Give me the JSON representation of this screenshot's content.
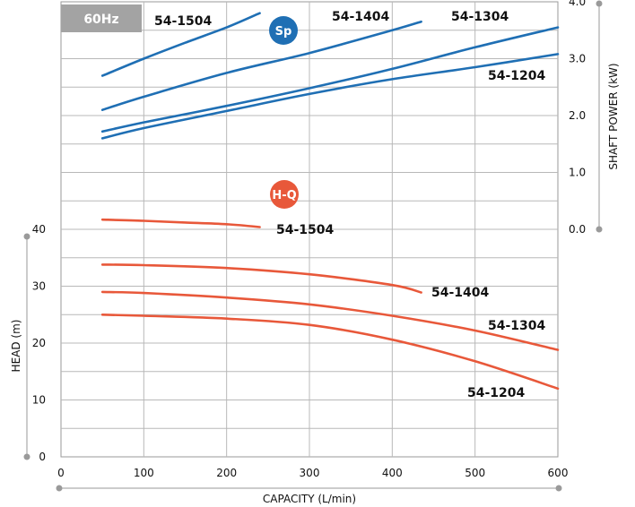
{
  "chart_data": {
    "type": "line",
    "frequency_tag": "60Hz",
    "x_axis": {
      "title": "CAPACITY (L/min)",
      "range": [
        0,
        600
      ],
      "ticks": [
        0,
        100,
        200,
        300,
        400,
        500,
        600
      ]
    },
    "head_axis": {
      "title": "HEAD (m)",
      "range": [
        0,
        40
      ],
      "ticks": [
        0,
        10,
        20,
        30,
        40
      ]
    },
    "power_axis": {
      "title": "SHAFT POWER (kW)",
      "range": [
        0,
        4
      ],
      "ticks": [
        "0.0",
        "1.0",
        "2.0",
        "3.0",
        "4.0"
      ]
    },
    "grid": true,
    "groups": [
      {
        "badge": "Sp",
        "color": "#1f6fb4"
      },
      {
        "badge": "H-Q",
        "color": "#e8583a"
      }
    ],
    "power_series": [
      {
        "name": "54-1504",
        "color": "#1f6fb4",
        "points": [
          [
            50,
            2.7
          ],
          [
            100,
            3.0
          ],
          [
            150,
            3.28
          ],
          [
            200,
            3.55
          ],
          [
            240,
            3.8
          ]
        ]
      },
      {
        "name": "54-1404",
        "color": "#1f6fb4",
        "points": [
          [
            50,
            2.1
          ],
          [
            100,
            2.33
          ],
          [
            200,
            2.75
          ],
          [
            300,
            3.1
          ],
          [
            400,
            3.5
          ],
          [
            435,
            3.65
          ]
        ]
      },
      {
        "name": "54-1304",
        "color": "#1f6fb4",
        "points": [
          [
            50,
            1.72
          ],
          [
            100,
            1.88
          ],
          [
            200,
            2.17
          ],
          [
            300,
            2.48
          ],
          [
            400,
            2.82
          ],
          [
            500,
            3.2
          ],
          [
            600,
            3.55
          ]
        ]
      },
      {
        "name": "54-1204",
        "color": "#1f6fb4",
        "points": [
          [
            50,
            1.6
          ],
          [
            100,
            1.78
          ],
          [
            200,
            2.08
          ],
          [
            300,
            2.38
          ],
          [
            400,
            2.64
          ],
          [
            500,
            2.85
          ],
          [
            600,
            3.08
          ]
        ]
      }
    ],
    "head_series": [
      {
        "name": "54-1504",
        "color": "#e8583a",
        "points": [
          [
            50,
            41.7
          ],
          [
            100,
            41.5
          ],
          [
            150,
            41.2
          ],
          [
            200,
            40.9
          ],
          [
            240,
            40.4
          ]
        ]
      },
      {
        "name": "54-1404",
        "color": "#e8583a",
        "points": [
          [
            50,
            33.8
          ],
          [
            100,
            33.7
          ],
          [
            200,
            33.2
          ],
          [
            300,
            32.1
          ],
          [
            400,
            30.2
          ],
          [
            435,
            28.9
          ]
        ]
      },
      {
        "name": "54-1304",
        "color": "#e8583a",
        "points": [
          [
            50,
            29.0
          ],
          [
            100,
            28.8
          ],
          [
            200,
            28.0
          ],
          [
            300,
            26.8
          ],
          [
            400,
            24.8
          ],
          [
            500,
            22.2
          ],
          [
            600,
            18.8
          ]
        ]
      },
      {
        "name": "54-1204",
        "color": "#e8583a",
        "points": [
          [
            50,
            25.0
          ],
          [
            100,
            24.8
          ],
          [
            200,
            24.3
          ],
          [
            300,
            23.2
          ],
          [
            400,
            20.6
          ],
          [
            500,
            16.8
          ],
          [
            600,
            12.0
          ]
        ]
      }
    ]
  }
}
